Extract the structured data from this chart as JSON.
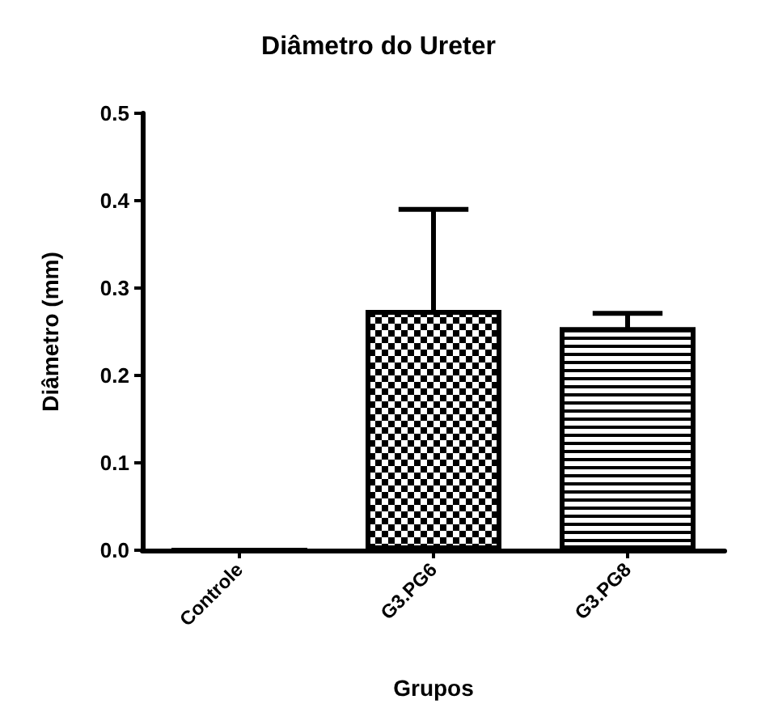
{
  "chart_data": {
    "type": "bar",
    "title": "Diâmetro do Ureter",
    "xlabel": "Grupos",
    "ylabel": "Diâmetro (mm)",
    "categories": [
      "Controle",
      "G3.PG6",
      "G3.PG8"
    ],
    "values": [
      0,
      0.275,
      0.255
    ],
    "errors": [
      null,
      0.115,
      0.016
    ],
    "colors": [
      "#000000",
      "#000000",
      "#000000"
    ],
    "ylim": [
      0,
      0.5
    ],
    "yticks": [
      {
        "value": 0,
        "label": "0.0"
      },
      {
        "value": 0.1,
        "label": "0.1"
      },
      {
        "value": 0.2,
        "label": "0.2"
      },
      {
        "value": 0.3,
        "label": "0.3"
      },
      {
        "value": 0.4,
        "label": "0.4"
      },
      {
        "value": 0.5,
        "label": "0.5"
      }
    ],
    "grid": false
  }
}
